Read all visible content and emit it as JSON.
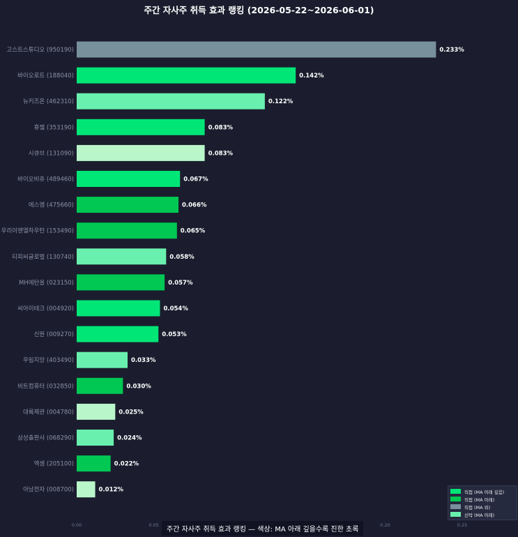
{
  "title": "주간 자사주 취득 효과 랭킹  (2026-05-22~2026-06-01)",
  "caption": "주간 자사주 취득 효과 랭킹 — 색상: MA 아래 깊을수록 진한 초록",
  "colors": {
    "background": "#1b1d2e",
    "tick_label": "#6e7390",
    "category_label": "#8c8fa6",
    "value_label": "#ffffff"
  },
  "legend": [
    {
      "label": "직접 (MA 아래 깊음)",
      "color": "#00e676"
    },
    {
      "label": "직접 (MA 아래)",
      "color": "#00c853"
    },
    {
      "label": "직접 (MA 위)",
      "color": "#78909c"
    },
    {
      "label": "신탁 (MA 아래)",
      "color": "#69f0ae"
    }
  ],
  "chart_data": {
    "type": "bar",
    "orientation": "horizontal",
    "title": "주간 자사주 취득 효과 랭킹  (2026-05-22~2026-06-01)",
    "xlim": [
      0,
      0.28
    ],
    "x_ticks": [
      "0.00",
      "0.05",
      "0.10",
      "0.15",
      "0.20",
      "0.25"
    ],
    "x_tick_values": [
      0,
      0.05,
      0.1,
      0.15,
      0.2,
      0.25
    ],
    "grid": false,
    "legend_position": "bottom-right",
    "categories": [
      "고스트스튜디오 (950190)",
      "바이오로트 (188040)",
      "뉴키즈온 (462310)",
      "휴젤 (353190)",
      "시큐브 (131090)",
      "바이오비쥬 (489460)",
      "에스엠 (475660)",
      "우리이앤엘하우턴 (153490)",
      "티피씨글로벌 (130740)",
      "MH에탄올 (023150)",
      "씨아이테크 (004920)",
      "신원 (009270)",
      "우림지앙 (403490)",
      "비트컴퓨터 (032850)",
      "대륙제관 (004780)",
      "삼성출판사 (068290)",
      "엑셈 (205100)",
      "아남전자 (008700)"
    ],
    "values": [
      0.233,
      0.142,
      0.122,
      0.083,
      0.083,
      0.067,
      0.066,
      0.065,
      0.058,
      0.057,
      0.054,
      0.053,
      0.033,
      0.03,
      0.025,
      0.024,
      0.022,
      0.012
    ],
    "value_labels": [
      "0.233%",
      "0.142%",
      "0.122%",
      "0.083%",
      "0.083%",
      "0.067%",
      "0.066%",
      "0.065%",
      "0.058%",
      "0.057%",
      "0.054%",
      "0.053%",
      "0.033%",
      "0.030%",
      "0.025%",
      "0.024%",
      "0.022%",
      "0.012%"
    ],
    "colors": [
      "#78909c",
      "#00e676",
      "#69f0ae",
      "#00e676",
      "#b9f6ca",
      "#00e676",
      "#00c853",
      "#00c853",
      "#69f0ae",
      "#00c853",
      "#00e676",
      "#00e676",
      "#69f0ae",
      "#00c853",
      "#b9f6ca",
      "#69f0ae",
      "#00c853",
      "#b9f6ca"
    ]
  }
}
